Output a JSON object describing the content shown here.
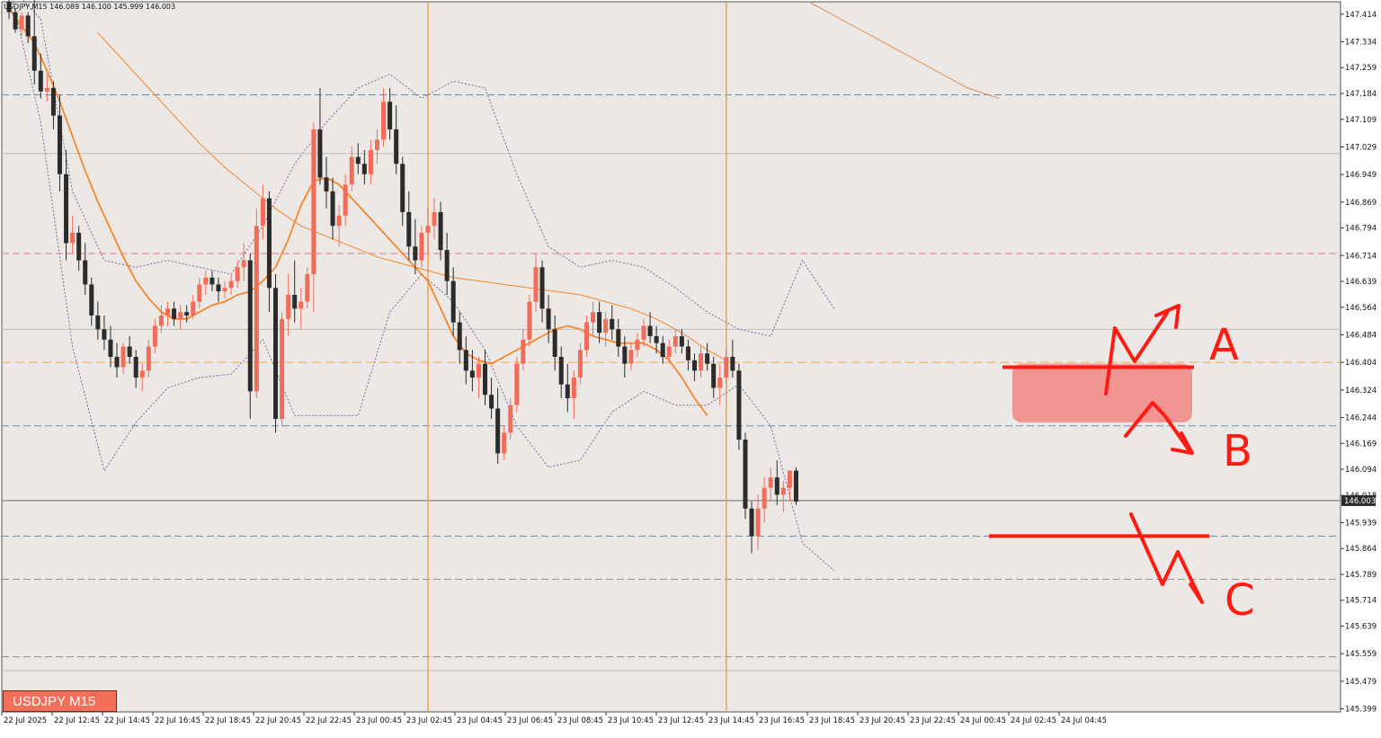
{
  "window": {
    "symbol_badge": "USDJPY M15",
    "info_line": "USDJPY,M15 146.089 146.100 145.999 146.003"
  },
  "colors": {
    "background": "#ebe8e5",
    "up_candle": "#f36c5a",
    "down_candle": "#2b2b2b",
    "ma_fast": "#f7862a",
    "ma_slow": "#f7862a",
    "bands": "#6f6fa0",
    "annotation": "#ff1a12",
    "zone_fill": "#f28c8a",
    "session_line": "#f7a13a"
  },
  "chart_data": {
    "type": "candlestick",
    "symbol": "USDJPY",
    "timeframe": "M15",
    "x_ticks": [
      "22 Jul 2025",
      "22 Jul 12:45",
      "22 Jul 14:45",
      "22 Jul 16:45",
      "22 Jul 18:45",
      "22 Jul 20:45",
      "22 Jul 22:45",
      "23 Jul 00:45",
      "23 Jul 02:45",
      "23 Jul 04:45",
      "23 Jul 06:45",
      "23 Jul 08:45",
      "23 Jul 10:45",
      "23 Jul 12:45",
      "23 Jul 14:45",
      "23 Jul 16:45",
      "23 Jul 18:45",
      "23 Jul 20:45",
      "23 Jul 22:45",
      "24 Jul 00:45",
      "24 Jul 02:45",
      "24 Jul 04:45"
    ],
    "y_ticks": [
      "147.414",
      "147.334",
      "147.259",
      "147.184",
      "147.109",
      "147.029",
      "146.949",
      "146.869",
      "146.794",
      "146.714",
      "146.639",
      "146.564",
      "146.484",
      "146.404",
      "146.324",
      "146.244",
      "146.169",
      "146.094",
      "146.018",
      "145.939",
      "145.864",
      "145.789",
      "145.714",
      "145.639",
      "145.559",
      "145.479",
      "145.399"
    ],
    "ylim": [
      145.39,
      147.45
    ],
    "current_price": "146.003",
    "ohlc": [
      [
        147.45,
        147.46,
        147.4,
        147.42
      ],
      [
        147.42,
        147.43,
        147.36,
        147.37
      ],
      [
        147.37,
        147.42,
        147.35,
        147.41
      ],
      [
        147.41,
        147.42,
        147.33,
        147.35
      ],
      [
        147.35,
        147.47,
        147.21,
        147.25
      ],
      [
        147.25,
        147.3,
        147.17,
        147.19
      ],
      [
        147.19,
        147.24,
        147.16,
        147.2
      ],
      [
        147.2,
        147.22,
        147.08,
        147.12
      ],
      [
        147.12,
        147.18,
        146.9,
        146.95
      ],
      [
        146.95,
        147.02,
        146.7,
        146.75
      ],
      [
        146.75,
        146.83,
        146.72,
        146.78
      ],
      [
        146.78,
        146.8,
        146.67,
        146.7
      ],
      [
        146.7,
        146.75,
        146.6,
        146.63
      ],
      [
        146.63,
        146.65,
        146.51,
        146.54
      ],
      [
        146.54,
        146.58,
        146.47,
        146.5
      ],
      [
        146.5,
        146.54,
        146.44,
        146.47
      ],
      [
        146.47,
        146.51,
        146.39,
        146.42
      ],
      [
        146.42,
        146.46,
        146.36,
        146.39
      ],
      [
        146.39,
        146.46,
        146.37,
        146.45
      ],
      [
        146.45,
        146.48,
        146.4,
        146.42
      ],
      [
        146.42,
        146.44,
        146.33,
        146.36
      ],
      [
        146.36,
        146.4,
        146.32,
        146.38
      ],
      [
        146.38,
        146.47,
        146.36,
        146.45
      ],
      [
        146.45,
        146.53,
        146.43,
        146.51
      ],
      [
        146.51,
        146.57,
        146.49,
        146.54
      ],
      [
        146.54,
        146.58,
        146.51,
        146.56
      ],
      [
        146.56,
        146.58,
        146.51,
        146.53
      ],
      [
        146.53,
        146.57,
        146.5,
        146.55
      ],
      [
        146.55,
        146.57,
        146.52,
        146.54
      ],
      [
        146.54,
        146.6,
        146.53,
        146.58
      ],
      [
        146.58,
        146.65,
        146.56,
        146.63
      ],
      [
        146.63,
        146.67,
        146.6,
        146.65
      ],
      [
        146.65,
        146.67,
        146.61,
        146.63
      ],
      [
        146.63,
        146.65,
        146.58,
        146.61
      ],
      [
        146.61,
        146.64,
        146.59,
        146.62
      ],
      [
        146.62,
        146.66,
        146.6,
        146.64
      ],
      [
        146.64,
        146.7,
        146.62,
        146.68
      ],
      [
        146.68,
        146.75,
        146.64,
        146.7
      ],
      [
        146.7,
        146.72,
        146.24,
        146.32
      ],
      [
        146.32,
        146.85,
        146.3,
        146.8
      ],
      [
        146.8,
        146.92,
        146.76,
        146.88
      ],
      [
        146.88,
        146.9,
        146.55,
        146.62
      ],
      [
        146.62,
        146.66,
        146.2,
        146.24
      ],
      [
        146.24,
        146.55,
        146.22,
        146.53
      ],
      [
        146.53,
        146.66,
        146.48,
        146.6
      ],
      [
        146.6,
        146.7,
        146.52,
        146.56
      ],
      [
        146.56,
        146.62,
        146.5,
        146.58
      ],
      [
        146.58,
        146.68,
        146.56,
        146.66
      ],
      [
        146.66,
        147.1,
        146.55,
        147.08
      ],
      [
        147.08,
        147.2,
        146.92,
        146.94
      ],
      [
        146.94,
        147.0,
        146.85,
        146.9
      ],
      [
        146.9,
        146.94,
        146.76,
        146.8
      ],
      [
        146.8,
        146.86,
        146.74,
        146.83
      ],
      [
        146.83,
        146.95,
        146.8,
        146.92
      ],
      [
        146.92,
        147.03,
        146.9,
        147.0
      ],
      [
        147.0,
        147.04,
        146.95,
        146.98
      ],
      [
        146.98,
        147.02,
        146.92,
        146.95
      ],
      [
        146.95,
        147.05,
        146.92,
        147.02
      ],
      [
        147.02,
        147.08,
        146.98,
        147.05
      ],
      [
        147.05,
        147.2,
        147.03,
        147.16
      ],
      [
        147.16,
        147.2,
        147.05,
        147.08
      ],
      [
        147.08,
        147.15,
        146.95,
        146.98
      ],
      [
        146.98,
        147.0,
        146.8,
        146.84
      ],
      [
        146.84,
        146.9,
        146.7,
        146.74
      ],
      [
        146.74,
        146.82,
        146.66,
        146.7
      ],
      [
        146.7,
        146.8,
        146.68,
        146.78
      ],
      [
        146.78,
        146.85,
        146.72,
        146.8
      ],
      [
        146.8,
        146.88,
        146.76,
        146.84
      ],
      [
        146.84,
        146.87,
        146.7,
        146.73
      ],
      [
        146.73,
        146.78,
        146.6,
        146.64
      ],
      [
        146.64,
        146.68,
        146.48,
        146.52
      ],
      [
        146.52,
        146.55,
        146.4,
        146.44
      ],
      [
        146.44,
        146.48,
        146.34,
        146.38
      ],
      [
        146.38,
        146.44,
        146.32,
        146.36
      ],
      [
        146.36,
        146.42,
        146.3,
        146.4
      ],
      [
        146.4,
        146.44,
        146.28,
        146.31
      ],
      [
        146.31,
        146.36,
        146.24,
        146.27
      ],
      [
        146.27,
        146.33,
        146.11,
        146.14
      ],
      [
        146.14,
        146.22,
        146.12,
        146.2
      ],
      [
        146.2,
        146.3,
        146.18,
        146.28
      ],
      [
        146.28,
        146.42,
        146.26,
        146.4
      ],
      [
        146.4,
        146.5,
        146.38,
        146.47
      ],
      [
        146.47,
        146.6,
        146.45,
        146.58
      ],
      [
        146.58,
        146.72,
        146.55,
        146.68
      ],
      [
        146.68,
        146.7,
        146.52,
        146.56
      ],
      [
        146.56,
        146.6,
        146.46,
        146.5
      ],
      [
        146.5,
        146.54,
        146.38,
        146.42
      ],
      [
        146.42,
        146.45,
        146.3,
        146.34
      ],
      [
        146.34,
        146.4,
        146.26,
        146.3
      ],
      [
        146.3,
        146.38,
        146.24,
        146.36
      ],
      [
        146.36,
        146.46,
        146.34,
        146.44
      ],
      [
        146.44,
        146.54,
        146.42,
        146.52
      ],
      [
        146.52,
        146.58,
        146.48,
        146.55
      ],
      [
        146.55,
        146.58,
        146.46,
        146.49
      ],
      [
        146.49,
        146.55,
        146.45,
        146.53
      ],
      [
        146.53,
        146.57,
        146.47,
        146.5
      ],
      [
        146.5,
        146.53,
        146.42,
        146.45
      ],
      [
        146.45,
        146.48,
        146.36,
        146.4
      ],
      [
        146.4,
        146.46,
        146.38,
        146.44
      ],
      [
        146.44,
        146.49,
        146.42,
        146.47
      ],
      [
        146.47,
        146.53,
        146.45,
        146.51
      ],
      [
        146.51,
        146.55,
        146.46,
        146.48
      ],
      [
        146.48,
        146.51,
        146.43,
        146.46
      ],
      [
        146.46,
        146.48,
        146.4,
        146.42
      ],
      [
        146.42,
        146.47,
        146.4,
        146.45
      ],
      [
        146.45,
        146.5,
        146.43,
        146.48
      ],
      [
        146.48,
        146.5,
        146.43,
        146.45
      ],
      [
        146.45,
        146.47,
        146.38,
        146.41
      ],
      [
        146.41,
        146.43,
        146.35,
        146.38
      ],
      [
        146.38,
        146.45,
        146.36,
        146.43
      ],
      [
        146.43,
        146.46,
        146.38,
        146.4
      ],
      [
        146.4,
        146.42,
        146.3,
        146.33
      ],
      [
        146.33,
        146.4,
        146.28,
        146.36
      ],
      [
        146.36,
        146.44,
        146.34,
        146.42
      ],
      [
        146.42,
        146.47,
        146.36,
        146.38
      ],
      [
        146.38,
        146.4,
        146.15,
        146.18
      ],
      [
        146.18,
        146.2,
        145.95,
        145.98
      ],
      [
        145.98,
        146.0,
        145.85,
        145.9
      ],
      [
        145.9,
        146.02,
        145.86,
        145.98
      ],
      [
        145.98,
        146.07,
        145.94,
        146.04
      ],
      [
        146.04,
        146.1,
        146.0,
        146.07
      ],
      [
        146.07,
        146.12,
        145.99,
        146.02
      ],
      [
        146.02,
        146.06,
        145.97,
        146.04
      ],
      [
        146.04,
        146.09,
        146.0,
        146.09
      ],
      [
        146.09,
        146.1,
        145.99,
        146.0
      ]
    ],
    "indicators": {
      "ma_fast": [
        147.43,
        147.38,
        147.33,
        147.25,
        147.16,
        147.06,
        146.96,
        146.87,
        146.79,
        146.71,
        146.64,
        146.59,
        146.55,
        146.53,
        146.53,
        146.55,
        146.57,
        146.58,
        146.6,
        146.61,
        146.64,
        146.68,
        146.76,
        146.86,
        146.93,
        146.94,
        146.92,
        146.88,
        146.84,
        146.8,
        146.76,
        146.72,
        146.68,
        146.64,
        146.56,
        146.48,
        146.43,
        146.41,
        146.4,
        146.42,
        146.44,
        146.46,
        146.48,
        146.5,
        146.51,
        146.5,
        146.48,
        146.47,
        146.46,
        146.46,
        146.46,
        146.44,
        146.41,
        146.36,
        146.3,
        146.25
      ],
      "ma_fast_start": 0,
      "ma_fast_step": 2,
      "ma_slow": [
        147.36,
        147.28,
        147.2,
        147.12,
        147.04,
        146.97,
        146.91,
        146.85,
        146.8,
        146.77,
        146.74,
        146.71,
        146.69,
        146.67,
        146.65,
        146.64,
        146.63,
        146.62,
        146.61,
        146.6,
        146.58,
        146.56,
        146.53,
        146.49,
        146.44,
        146.4
      ],
      "ma_slow_start": 14,
      "ma_slow_step": 4,
      "ma_long": [
        147.45,
        147.4,
        147.35,
        147.3,
        147.25,
        147.2,
        147.17
      ],
      "bb_upper": [
        147.5,
        147.4,
        146.9,
        146.7,
        146.68,
        146.7,
        146.68,
        146.66,
        146.8,
        146.98,
        147.1,
        147.2,
        147.24,
        147.17,
        147.22,
        147.2,
        146.95,
        146.74,
        146.68,
        146.7,
        146.68,
        146.62,
        146.55,
        146.5,
        146.48,
        146.7,
        146.56
      ],
      "bb_lower": [
        147.5,
        147.1,
        146.45,
        146.09,
        146.23,
        146.33,
        146.36,
        146.37,
        146.47,
        146.25,
        146.25,
        146.25,
        146.55,
        146.66,
        146.58,
        146.44,
        146.22,
        146.1,
        146.12,
        146.26,
        146.32,
        146.28,
        146.28,
        146.34,
        146.22,
        145.88,
        145.8
      ],
      "bb_step": 5
    },
    "levels": {
      "blue_dashed": [
        147.18,
        146.22,
        145.9
      ],
      "gray_dashed": [
        145.775,
        145.55
      ],
      "gray_solid": [
        147.01,
        146.5,
        145.51
      ],
      "pink_dashed": [
        146.72
      ],
      "orange_dashed": [
        146.404
      ],
      "current_line": [
        146.003
      ]
    },
    "session_lines": [
      66,
      113
    ],
    "annotations": {
      "labels": [
        "A",
        "B",
        "C"
      ],
      "resistance_level": 146.39,
      "support_level": 145.9,
      "zone": [
        146.23,
        146.4
      ]
    }
  }
}
